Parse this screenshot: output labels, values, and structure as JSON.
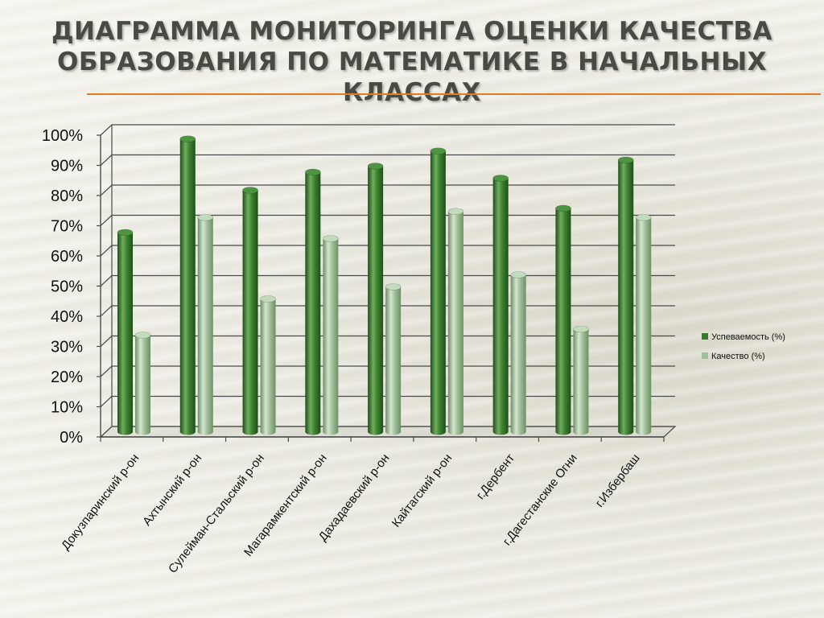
{
  "slide": {
    "title": "ДИАГРАММА МОНИТОРИНГА ОЦЕНКИ КАЧЕСТВА ОБРАЗОВАНИЯ ПО МАТЕМАТИКЕ  В НАЧАЛЬНЫХ КЛАССАХ"
  },
  "colors": {
    "series_1": "#3a7a2e",
    "series_2": "#9fbf98",
    "accent_rule": "#e07b2a"
  },
  "chart_data": {
    "type": "bar",
    "title": "",
    "xlabel": "",
    "ylabel": "",
    "ylim": [
      0,
      100
    ],
    "y_tick_labels": [
      "0%",
      "10%",
      "20%",
      "30%",
      "40%",
      "50%",
      "60%",
      "70%",
      "80%",
      "90%",
      "100%"
    ],
    "grid": true,
    "legend_position": "right",
    "categories": [
      "Докузпаринский р-он",
      "Ахтынский р-он",
      "Сулейман-Стальский р-он",
      "Магарамкентский р-он",
      "Дахадаевский р-он",
      "Кайтагский р-он",
      "г.Дербент",
      "г.Дагестанские Огни",
      "г.Избербаш"
    ],
    "series": [
      {
        "name": "Успеваемость (%)",
        "values": [
          66,
          97,
          80,
          86,
          88,
          93,
          84,
          74,
          90
        ]
      },
      {
        "name": "Качество (%)",
        "values": [
          32,
          71,
          44,
          64,
          48,
          73,
          52,
          34,
          71
        ]
      }
    ]
  }
}
